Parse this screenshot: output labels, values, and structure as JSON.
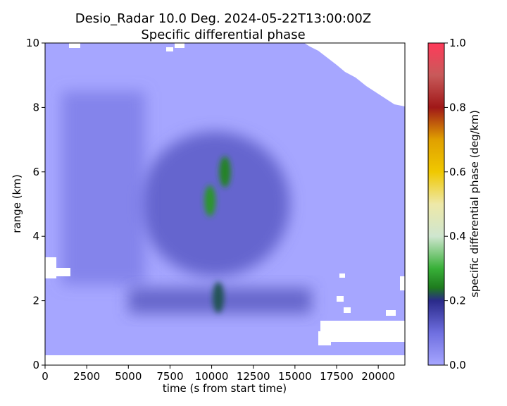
{
  "chart_data": {
    "type": "heatmap",
    "title": "Desio_Radar 10.0 Deg. 2024-05-22T13:00:00Z",
    "subtitle": "Specific differential phase",
    "xlabel": "time (s from start time)",
    "ylabel": "range (km)",
    "xlim": [
      0,
      21600
    ],
    "ylim": [
      0,
      10
    ],
    "x_ticks": [
      "0",
      "2500",
      "5000",
      "7500",
      "10000",
      "12500",
      "15000",
      "17500",
      "20000"
    ],
    "x_tick_values": [
      0,
      2500,
      5000,
      7500,
      10000,
      12500,
      15000,
      17500,
      20000
    ],
    "y_ticks": [
      "0",
      "2",
      "4",
      "6",
      "8",
      "10"
    ],
    "y_tick_values": [
      0,
      2,
      4,
      6,
      8,
      10
    ],
    "colorbar": {
      "label": "specific differential phase (deg/km)",
      "range": [
        0.0,
        1.0
      ],
      "ticks": [
        "0.0",
        "0.2",
        "0.4",
        "0.6",
        "0.8",
        "1.0"
      ],
      "tick_values": [
        0.0,
        0.2,
        0.4,
        0.6,
        0.8,
        1.0
      ],
      "colors": [
        {
          "value": 0.0,
          "color": "#a6a6ff"
        },
        {
          "value": 0.1,
          "color": "#6f6fe0"
        },
        {
          "value": 0.2,
          "color": "#2a2a8a"
        },
        {
          "value": 0.24,
          "color": "#1e7a1e"
        },
        {
          "value": 0.3,
          "color": "#38b038"
        },
        {
          "value": 0.4,
          "color": "#cfe6cf"
        },
        {
          "value": 0.5,
          "color": "#eee8a8"
        },
        {
          "value": 0.6,
          "color": "#f0c800"
        },
        {
          "value": 0.7,
          "color": "#e0a000"
        },
        {
          "value": 0.8,
          "color": "#a01818"
        },
        {
          "value": 0.9,
          "color": "#c85a5a"
        },
        {
          "value": 1.0,
          "color": "#ff3a5a"
        }
      ]
    },
    "background_value": 0.04,
    "features": [
      {
        "kind": "enhanced_region",
        "x_center": 10200,
        "y_center": 5.0,
        "x_width": 9000,
        "y_height": 4.5,
        "value": 0.13
      },
      {
        "kind": "streak_band",
        "x_range": [
          1000,
          6000
        ],
        "y_range": [
          2.5,
          8.5
        ],
        "value": 0.09
      },
      {
        "kind": "low_band",
        "x_range": [
          5000,
          16000
        ],
        "y_range": [
          1.6,
          2.4
        ],
        "value": 0.15
      },
      {
        "kind": "peak_core",
        "x_center": 9900,
        "y_center": 5.1,
        "value": 0.27
      },
      {
        "kind": "peak_core",
        "x_center": 10800,
        "y_center": 6.0,
        "value": 0.25
      },
      {
        "kind": "peak_core",
        "x_center": 10400,
        "y_center": 2.1,
        "value": 0.22
      }
    ],
    "grid": false
  }
}
